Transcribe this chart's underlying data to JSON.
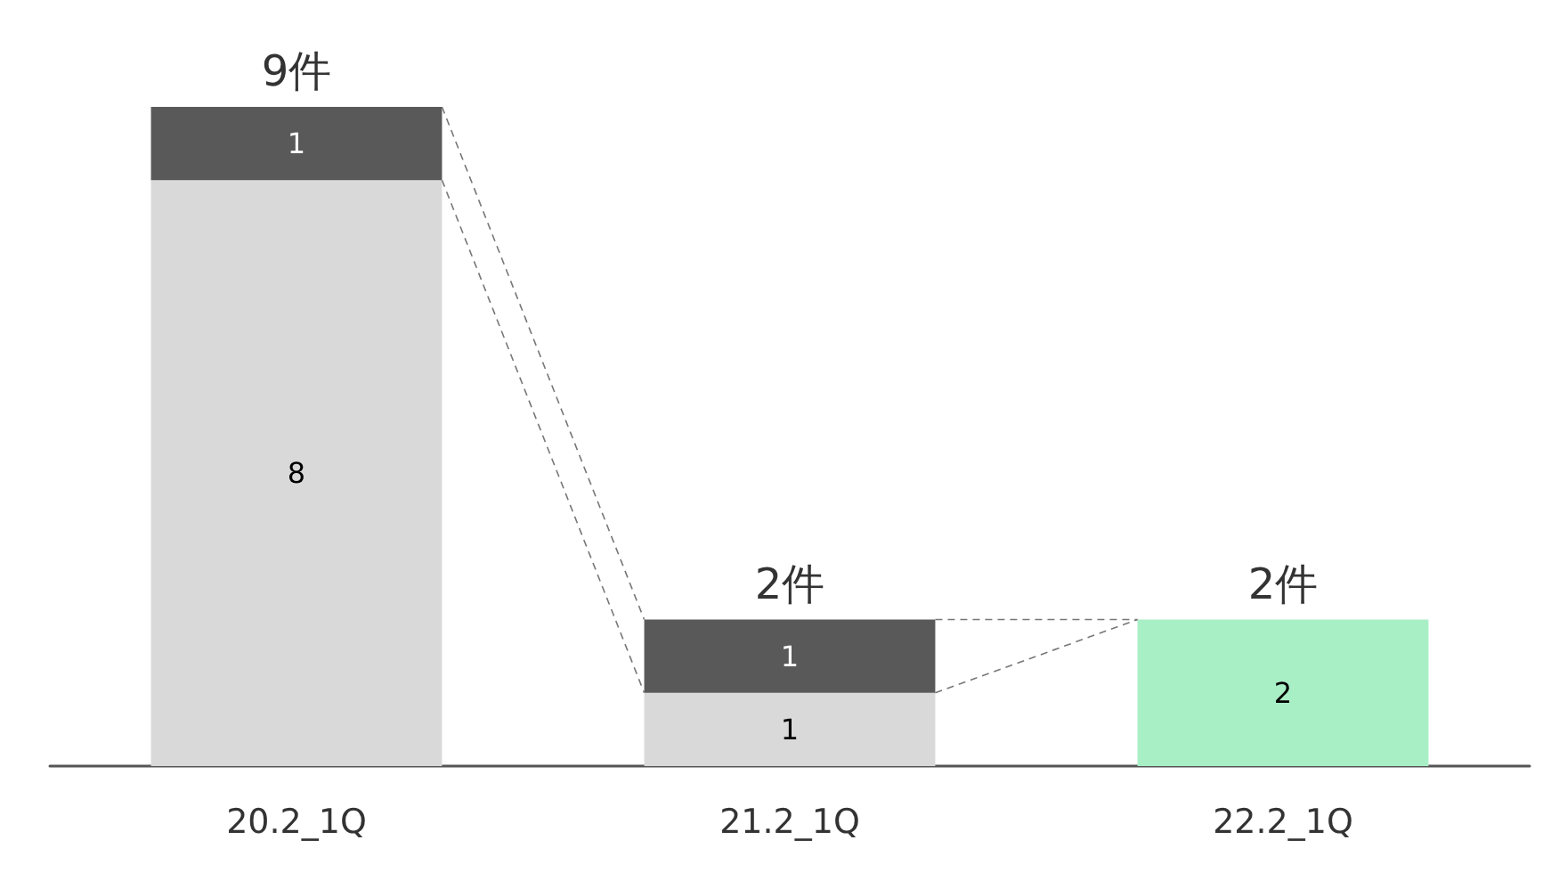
{
  "chart_data": {
    "type": "bar",
    "stacked": true,
    "categories": [
      "20.2_1Q",
      "21.2_1Q",
      "22.2_1Q"
    ],
    "series": [
      {
        "color": "#d9d9d9",
        "values": [
          8,
          1,
          null
        ]
      },
      {
        "color": "#595959",
        "values": [
          1,
          1,
          null
        ]
      },
      {
        "color": "#a9efc6",
        "values": [
          null,
          null,
          2
        ]
      }
    ],
    "data_labels": true,
    "totals": [
      "9件",
      "2件",
      "2件"
    ],
    "ylim": [
      0,
      9
    ],
    "tick_labels": "x"
  }
}
